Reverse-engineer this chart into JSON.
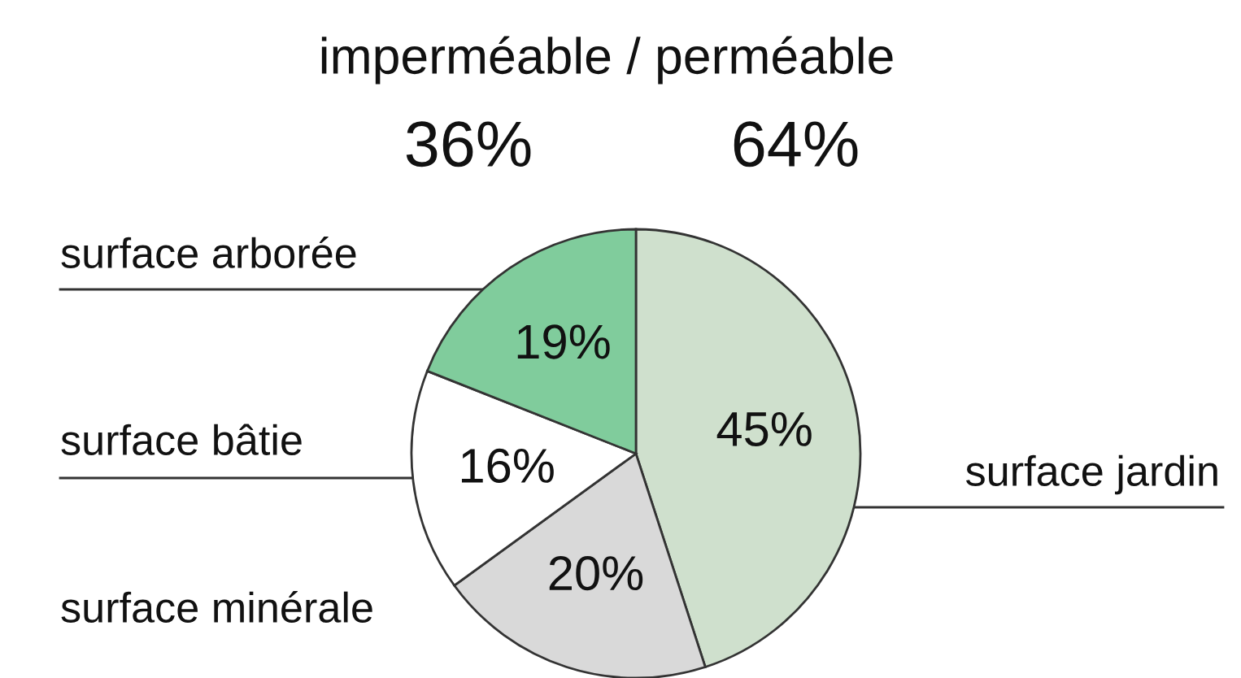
{
  "chart_data": {
    "type": "pie",
    "title": "imperméable / perméable",
    "annotations": [
      "36%",
      "64%"
    ],
    "categories": [
      "surface jardin",
      "surface minérale",
      "surface bâtie",
      "surface arborée"
    ],
    "values": [
      45,
      20,
      16,
      19
    ],
    "colors": [
      "#cfe0cd",
      "#d9d9d9",
      "#ffffff",
      "#80cc9c"
    ],
    "value_labels": [
      "45%",
      "20%",
      "16%",
      "19%"
    ]
  }
}
